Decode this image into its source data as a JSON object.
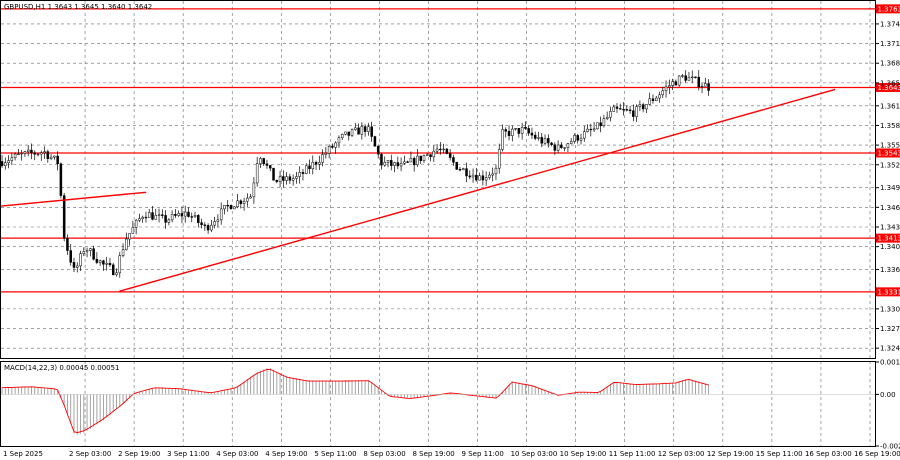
{
  "header": {
    "symbol_line": "GBPUSD,H1  1.3643 1.3645 1.3640 1.3642"
  },
  "macd_label": "MACD(14,22,3) 0.00045 0.00051",
  "colors": {
    "level": "#ff0000",
    "trend": "#ff0000",
    "candle": "#000000",
    "macd_hist": "#9a9a9a",
    "macd_signal": "#ff0000",
    "grid": "#6a6a6a"
  },
  "chart_data": [
    {
      "type": "candlestick",
      "title": "",
      "symbol": "GBPUSD",
      "timeframe": "H1",
      "ohlc_readout": {
        "open": 1.3643,
        "high": 1.3645,
        "low": 1.364,
        "close": 1.3642
      },
      "y_ticks": [
        "1.3763",
        "1.3740",
        "1.3710",
        "1.3680",
        "1.3650",
        "1.3643",
        "1.3615",
        "1.3585",
        "1.3555",
        "1.3543",
        "1.3525",
        "1.3490",
        "1.3460",
        "1.3430",
        "1.3413",
        "1.3400",
        "1.3365",
        "1.3331",
        "1.3305",
        "1.3275",
        "1.3245"
      ],
      "ylim": [
        1.323,
        1.3775
      ],
      "x_ticks": [
        "1 Sep 2025",
        "2 Sep 03:00",
        "2 Sep 19:00",
        "3 Sep 11:00",
        "4 Sep 03:00",
        "4 Sep 19:00",
        "5 Sep 11:00",
        "8 Sep 03:00",
        "8 Sep 19:00",
        "9 Sep 11:00",
        "10 Sep 03:00",
        "10 Sep 19:00",
        "11 Sep 11:00",
        "12 Sep 03:00",
        "12 Sep 19:00",
        "15 Sep 11:00",
        "16 Sep 03:00",
        "16 Sep 19:00"
      ],
      "levels": [
        {
          "value": 1.3763,
          "label": "1.3763"
        },
        {
          "value": 1.3643,
          "label": "1.3643"
        },
        {
          "value": 1.3543,
          "label": "1.3543"
        },
        {
          "value": 1.3413,
          "label": "1.3413"
        },
        {
          "value": 1.3331,
          "label": "1.3331"
        }
      ],
      "trendlines": [
        {
          "from": {
            "bar": 0,
            "price": 1.3462
          },
          "to": {
            "bar": 142,
            "price": 1.3483
          }
        },
        {
          "from": {
            "bar": 116,
            "price": 1.3332
          },
          "to": {
            "bar": 816,
            "price": 1.364
          }
        }
      ],
      "x_range": [
        0,
        855
      ],
      "anchors": [
        [
          0,
          1.353
        ],
        [
          20,
          1.354
        ],
        [
          42,
          1.3545
        ],
        [
          56,
          1.3528
        ],
        [
          62,
          1.3412
        ],
        [
          72,
          1.336
        ],
        [
          82,
          1.34
        ],
        [
          100,
          1.3372
        ],
        [
          112,
          1.3362
        ],
        [
          122,
          1.3412
        ],
        [
          140,
          1.3452
        ],
        [
          160,
          1.344
        ],
        [
          182,
          1.3452
        ],
        [
          200,
          1.3428
        ],
        [
          222,
          1.3462
        ],
        [
          245,
          1.3478
        ],
        [
          252,
          1.3545
        ],
        [
          268,
          1.35
        ],
        [
          290,
          1.3505
        ],
        [
          312,
          1.3535
        ],
        [
          335,
          1.3568
        ],
        [
          358,
          1.3582
        ],
        [
          372,
          1.3528
        ],
        [
          392,
          1.3522
        ],
        [
          410,
          1.3535
        ],
        [
          428,
          1.355
        ],
        [
          448,
          1.352
        ],
        [
          470,
          1.3505
        ],
        [
          485,
          1.3518
        ],
        [
          490,
          1.3572
        ],
        [
          510,
          1.3578
        ],
        [
          528,
          1.3562
        ],
        [
          545,
          1.355
        ],
        [
          562,
          1.3566
        ],
        [
          582,
          1.358
        ],
        [
          600,
          1.3608
        ],
        [
          620,
          1.3605
        ],
        [
          640,
          1.3628
        ],
        [
          655,
          1.3648
        ],
        [
          668,
          1.366
        ],
        [
          680,
          1.3652
        ],
        [
          695,
          1.3642
        ]
      ],
      "macd": {
        "label": "MACD(14,22,3)",
        "main": 0.00045,
        "signal": 0.00051,
        "y_ticks": [
          "0.00162",
          "0.00",
          "-0.00258"
        ],
        "ylim": [
          -0.00258,
          0.00162
        ]
      }
    }
  ]
}
